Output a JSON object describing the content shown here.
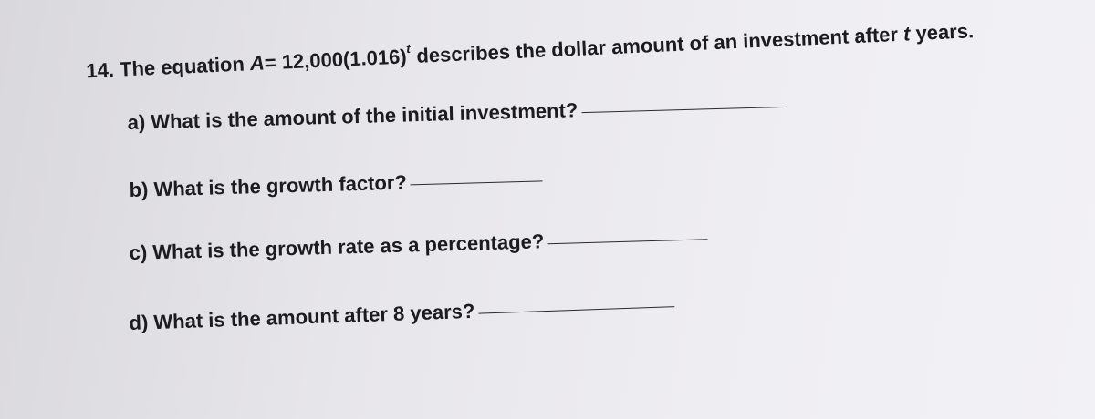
{
  "question": {
    "number": "14.",
    "parts": [
      "The equation ",
      "A",
      "= 12,000(1.016)",
      "t",
      " describes the dollar amount of an investment after ",
      "t",
      " years."
    ]
  },
  "items": [
    {
      "label": "a)",
      "text": "What is the amount of the initial investment?"
    },
    {
      "label": "b)",
      "text": "What is the growth factor?"
    },
    {
      "label": "c)",
      "text": "What is the growth rate as a percentage?"
    },
    {
      "label": "d)",
      "text": "What is the amount after 8 years?"
    }
  ]
}
